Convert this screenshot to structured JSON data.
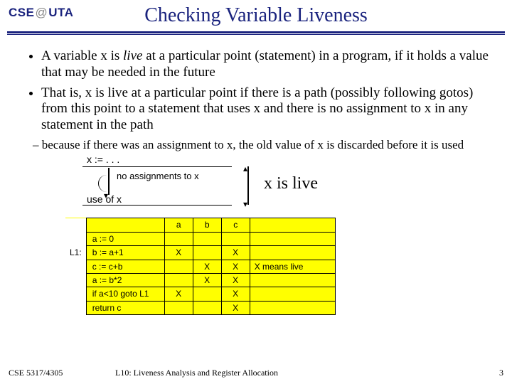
{
  "header": {
    "logo_pre": "CSE",
    "logo_at": "@",
    "logo_post": "UTA",
    "title": "Checking Variable Liveness"
  },
  "bullets": [
    "A variable x is live at a particular point (statement) in a program, if it holds a value that may be needed in the future",
    "That is, x is live at a particular point if there is a path (possibly following gotos) from this point to a statement that uses x and there is no assignment to x in any statement in the path"
  ],
  "subbullet": "because if there was an assignment to x, the old value of x is discarded before it is used",
  "diagram": {
    "assign": "x := . . .",
    "noassign": "no assignments to x",
    "use": "use of x",
    "xislive": "x is live"
  },
  "table": {
    "headers": [
      "a",
      "b",
      "c"
    ],
    "row_label": "L1:",
    "rows": [
      {
        "stmt": "a := 0",
        "a": "",
        "b": "",
        "c": "",
        "note": ""
      },
      {
        "stmt": "b := a+1",
        "a": "X",
        "b": "",
        "c": "X",
        "note": ""
      },
      {
        "stmt": "c := c+b",
        "a": "",
        "b": "X",
        "c": "X",
        "note": "X means live"
      },
      {
        "stmt": "a := b*2",
        "a": "",
        "b": "X",
        "c": "X",
        "note": ""
      },
      {
        "stmt": "if a<10 goto L1",
        "a": "X",
        "b": "",
        "c": "X",
        "note": ""
      },
      {
        "stmt": "return c",
        "a": "",
        "b": "",
        "c": "X",
        "note": ""
      }
    ]
  },
  "footer": {
    "course": "CSE 5317/4305",
    "lecture": "L10: Liveness Analysis and Register Allocation",
    "page": "3"
  }
}
